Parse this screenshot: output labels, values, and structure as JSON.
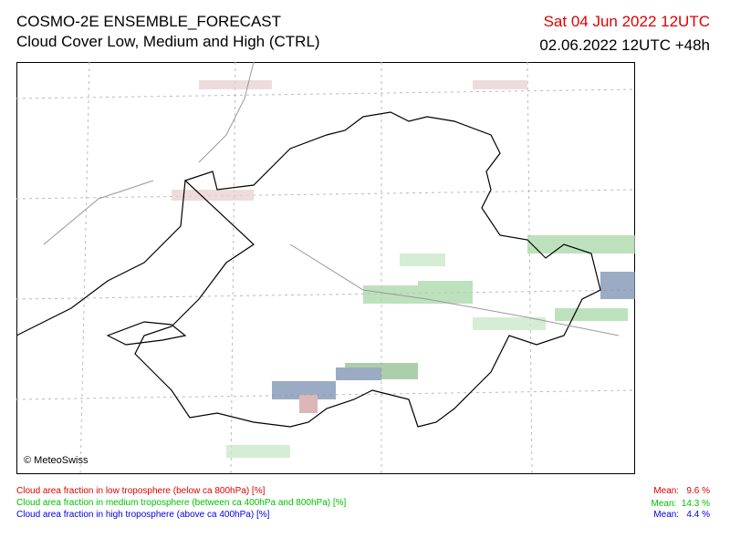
{
  "header": {
    "title": "COSMO-2E ENSEMBLE_FORECAST",
    "subtitle": "Cloud Cover Low, Medium and High (CTRL)",
    "valid_time": "Sat 04 Jun 2022 12UTC",
    "run_time": "02.06.2022 12UTC +48h"
  },
  "map": {
    "copyright": "© MeteoSwiss"
  },
  "legend": [
    {
      "label": "Cloud area fraction in low troposphere (below ca 800hPa) [%]",
      "mean": "Mean:   9.6 %"
    },
    {
      "label": "Cloud area fraction in medium troposphere (between ca 400hPa and 800hPa) [%]",
      "mean": "Mean:  14.3 %"
    },
    {
      "label": "Cloud area fraction in high troposphere (above ca 400hPa) [%]",
      "mean": "Mean:   4.4 %"
    }
  ]
}
